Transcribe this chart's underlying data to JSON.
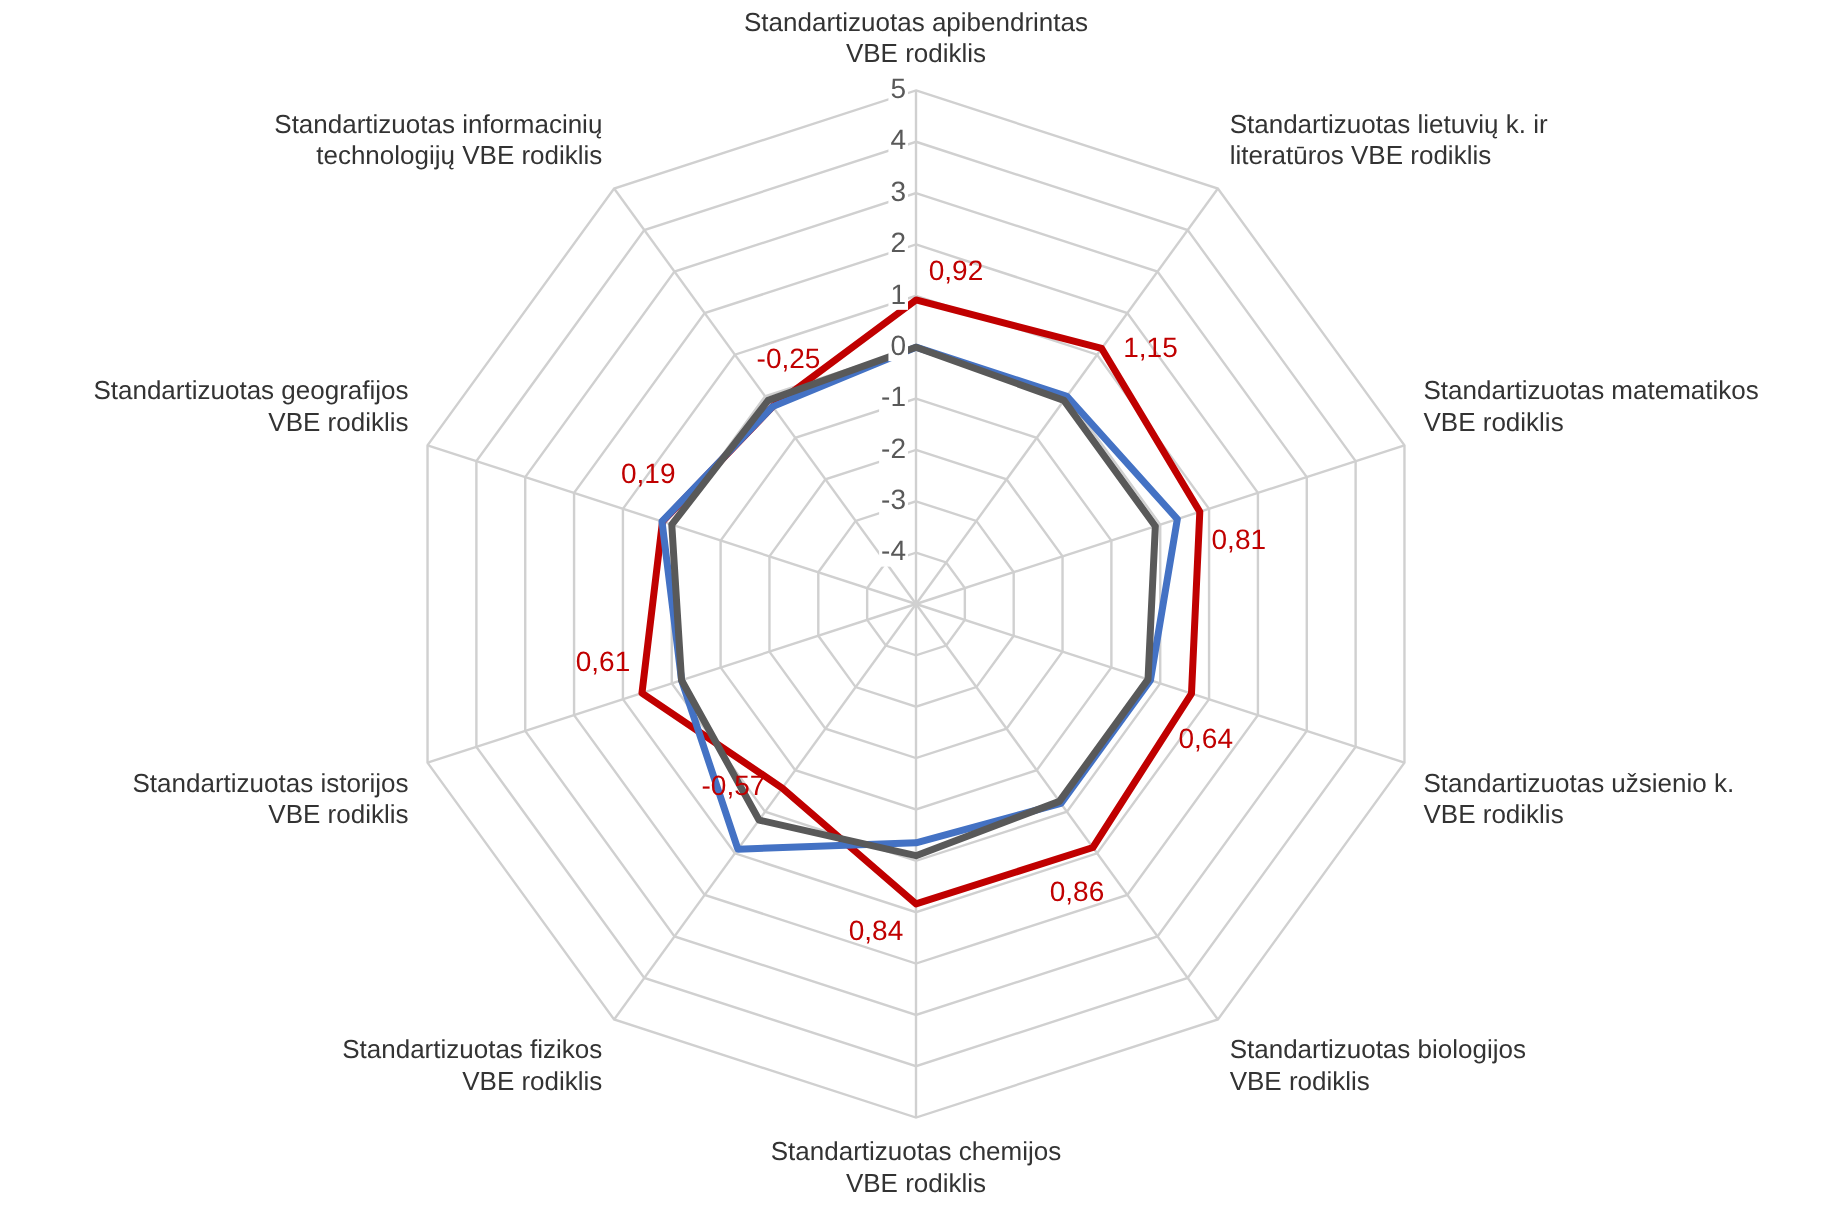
{
  "chart_data": {
    "type": "radar",
    "categories": [
      "Standartizuotas apibendrintas VBE rodiklis",
      "Standartizuotas lietuvių k. ir literatūros VBE rodiklis",
      "Standartizuotas matematikos VBE rodiklis",
      "Standartizuotas užsienio k. VBE rodiklis",
      "Standartizuotas biologijos VBE rodiklis",
      "Standartizuotas chemijos VBE rodiklis",
      "Standartizuotas fizikos VBE rodiklis",
      "Standartizuotas istorijos VBE rodiklis",
      "Standartizuotas geografijos VBE rodiklis",
      "Standartizuotas informacinių technologijų VBE rodiklis"
    ],
    "series": [
      {
        "color": "#595959",
        "values": [
          0,
          -0.1,
          -0.1,
          -0.25,
          -0.25,
          -0.1,
          0.2,
          -0.2,
          0,
          -0.1
        ]
      },
      {
        "color": "#4472c4",
        "values": [
          0,
          0,
          0.35,
          -0.2,
          -0.2,
          -0.35,
          0.9,
          -0.2,
          0.2,
          -0.25
        ]
      },
      {
        "color": "#c00000",
        "values": [
          0.92,
          1.15,
          0.81,
          0.64,
          0.86,
          0.84,
          -0.57,
          0.61,
          0.19,
          -0.25
        ],
        "value_labels": [
          "0,92",
          "1,15",
          "0,81",
          "0,64",
          "0,86",
          "0,84",
          "-0,57",
          "0,61",
          "0,19",
          "-0,25"
        ]
      }
    ],
    "ylim": [
      -5,
      5
    ],
    "yticks": [
      -4,
      -3,
      -2,
      -1,
      0,
      1,
      2,
      3,
      4,
      5
    ],
    "grid": true,
    "legend": false,
    "marker": "none"
  }
}
